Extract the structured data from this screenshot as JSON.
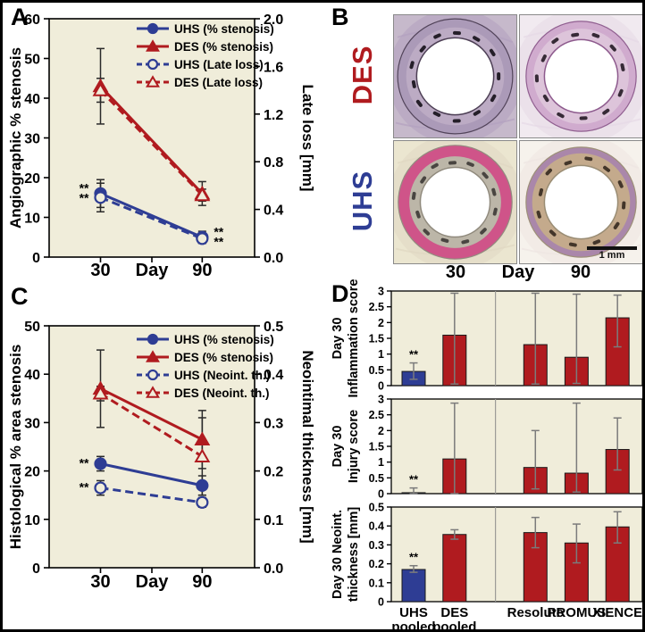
{
  "panels": {
    "a": {
      "label": "A"
    },
    "b": {
      "label": "B"
    },
    "c": {
      "label": "C"
    },
    "d": {
      "label": "D"
    }
  },
  "colors": {
    "uhs": "#2e3d94",
    "des": "#b01b1f",
    "plot_bg": "#f0edda",
    "err_dark": "#2a2a2a",
    "err_gray": "#7b7b7b",
    "axis": "#000000"
  },
  "chart_data": [
    {
      "id": "panel-a",
      "type": "line",
      "x": [
        "30",
        "90"
      ],
      "xlabel": "Day",
      "ylabel_left": "Angiographic % stenosis",
      "ylabel_right": "Late loss [mm]",
      "ylim_left": [
        0,
        60
      ],
      "yticks_left": [
        "0",
        "10",
        "20",
        "30",
        "40",
        "50",
        "60"
      ],
      "ylim_right": [
        0,
        2.0
      ],
      "yticks_right": [
        "0.0",
        "0.4",
        "0.8",
        "1.2",
        "1.6",
        "2.0"
      ],
      "legend_position": "top-right-inside",
      "series": [
        {
          "name": "UHS (% stenosis)",
          "axis": "left",
          "color": "uhs",
          "style": "solid",
          "marker": "circle",
          "filled": true,
          "values": [
            16,
            5
          ],
          "errors": [
            3.5,
            1.5
          ]
        },
        {
          "name": "DES (% stenosis)",
          "axis": "left",
          "color": "des",
          "style": "solid",
          "marker": "triangle",
          "filled": true,
          "values": [
            43,
            16
          ],
          "errors": [
            9.5,
            3
          ]
        },
        {
          "name": "UHS (Late loss)",
          "axis": "right",
          "color": "uhs",
          "style": "dashed",
          "marker": "circle",
          "filled": false,
          "values": [
            0.5,
            0.155
          ],
          "errors": [
            0.12,
            0.04
          ]
        },
        {
          "name": "DES (Late loss)",
          "axis": "right",
          "color": "des",
          "style": "dashed",
          "marker": "triangle",
          "filled": false,
          "values": [
            1.4,
            0.52
          ],
          "errors": [
            0.1,
            0.05
          ]
        }
      ],
      "annotations": [
        {
          "series": 0,
          "point": 0,
          "text": "**\n**",
          "side": "left"
        },
        {
          "series": 0,
          "point": 1,
          "text": "**\n**",
          "side": "right"
        }
      ]
    },
    {
      "id": "panel-c",
      "type": "line",
      "x": [
        "30",
        "90"
      ],
      "xlabel": "Day",
      "ylabel_left": "Histological % area stenosis",
      "ylabel_right": "Neointimal thickness [mm]",
      "ylim_left": [
        0,
        50
      ],
      "yticks_left": [
        "0",
        "10",
        "20",
        "30",
        "40",
        "50"
      ],
      "ylim_right": [
        0,
        0.5
      ],
      "yticks_right": [
        "0.0",
        "0.1",
        "0.2",
        "0.3",
        "0.4",
        "0.5"
      ],
      "legend_position": "top-right-inside",
      "series": [
        {
          "name": "UHS (% stenosis)",
          "axis": "left",
          "color": "uhs",
          "style": "solid",
          "marker": "circle",
          "filled": true,
          "values": [
            21.5,
            17
          ],
          "errors": [
            1.5,
            2
          ]
        },
        {
          "name": "DES (% stenosis)",
          "axis": "left",
          "color": "des",
          "style": "solid",
          "marker": "triangle",
          "filled": true,
          "values": [
            37,
            26.5
          ],
          "errors": [
            8,
            6
          ]
        },
        {
          "name": "UHS (Neoint. th.)",
          "axis": "right",
          "color": "uhs",
          "style": "dashed",
          "marker": "circle",
          "filled": false,
          "values": [
            0.165,
            0.135
          ],
          "errors": [
            0.015,
            0.01
          ]
        },
        {
          "name": "DES (Neoint. th.)",
          "axis": "right",
          "color": "des",
          "style": "dashed",
          "marker": "triangle",
          "filled": false,
          "values": [
            0.36,
            0.23
          ],
          "errors": [
            0.015,
            0.08
          ]
        }
      ],
      "annotations": [
        {
          "series": 0,
          "point": 0,
          "text": "**",
          "side": "left"
        },
        {
          "series": 2,
          "point": 0,
          "text": "**",
          "side": "left"
        }
      ]
    },
    {
      "id": "panel-d",
      "type": "bar",
      "categories": [
        [
          "UHS",
          "pooled"
        ],
        [
          "DES",
          "pooled"
        ],
        [
          "Resolute"
        ],
        [
          "PROMUS"
        ],
        [
          "XIENCE"
        ]
      ],
      "bar_colors": [
        "uhs",
        "des",
        "des",
        "des",
        "des"
      ],
      "charts": [
        {
          "ylabel_lines": [
            "Day 30",
            "Inflammation score"
          ],
          "ylim": [
            0,
            3
          ],
          "yticks": [
            "0",
            "0.5",
            "1",
            "1.5",
            "2",
            "2.5",
            "3"
          ],
          "values": [
            0.45,
            1.6,
            1.3,
            0.9,
            2.15
          ],
          "err_up": [
            0.27,
            1.33,
            1.63,
            2.0,
            0.72
          ],
          "err_down": [
            0.25,
            1.55,
            1.25,
            0.83,
            0.92
          ],
          "sig": [
            {
              "bar": 0,
              "text": "**"
            }
          ]
        },
        {
          "ylabel_lines": [
            "Day 30",
            "Injury score"
          ],
          "ylim": [
            0,
            3
          ],
          "yticks": [
            "0",
            "0.5",
            "1",
            "1.5",
            "2",
            "2.5",
            "3"
          ],
          "values": [
            0.03,
            1.1,
            0.83,
            0.65,
            1.4
          ],
          "err_up": [
            0.15,
            1.77,
            1.17,
            2.22,
            1.0
          ],
          "err_down": [
            0.03,
            1.1,
            0.68,
            0.6,
            0.65
          ],
          "sig": [
            {
              "bar": 0,
              "text": "**"
            }
          ]
        },
        {
          "ylabel_lines": [
            "Day 30 Neoint.",
            "thickness [mm]"
          ],
          "ylim": [
            0,
            0.5
          ],
          "yticks": [
            "0",
            "0.1",
            "0.2",
            "0.3",
            "0.4",
            "0.5"
          ],
          "values": [
            0.17,
            0.355,
            0.365,
            0.31,
            0.395
          ],
          "err_up": [
            0.02,
            0.025,
            0.08,
            0.1,
            0.08
          ],
          "err_down": [
            0.015,
            0.025,
            0.08,
            0.105,
            0.085
          ],
          "sig": [
            {
              "bar": 0,
              "text": "**"
            }
          ]
        }
      ]
    }
  ],
  "panel_b": {
    "row_labels": [
      {
        "text": "DES",
        "color": "des"
      },
      {
        "text": "UHS",
        "color": "uhs"
      }
    ],
    "x_labels": [
      "30",
      "Day",
      "90"
    ],
    "scale_bar": "1 mm",
    "tiles": [
      {
        "stent": "DES",
        "day": "30",
        "bg": "#c6b9cb",
        "halo": "#b3a1bf",
        "tissue": "#ab9ab8",
        "ring": "#bcabc4",
        "lumen_edge": "#4d3f55",
        "strut": "#141018",
        "tissue_r": 0.47,
        "ring_r": 0.4,
        "lumen_r": 0.315,
        "strut_r": 0.355,
        "n_struts": 13
      },
      {
        "stent": "DES",
        "day": "90",
        "bg": "#f1eaf0",
        "halo": "#e6d8e6",
        "tissue": "#cfa9cd",
        "ring": "#ddc4da",
        "lumen_edge": "#8d5a8d",
        "strut": "#241a24",
        "tissue_r": 0.45,
        "ring_r": 0.39,
        "lumen_r": 0.3,
        "strut_r": 0.35,
        "n_struts": 12
      },
      {
        "stent": "UHS",
        "day": "30",
        "bg": "#ebe6d0",
        "halo": "#e0d7c2",
        "tissue": "#cf4f87",
        "ring": "#bcb6a8",
        "lumen_edge": "#8f897c",
        "strut": "#3c3835",
        "tissue_r": 0.465,
        "ring_r": 0.375,
        "lumen_r": 0.285,
        "strut_r": 0.33,
        "n_struts": 13
      },
      {
        "stent": "UHS",
        "day": "90",
        "bg": "#f6f2ec",
        "halo": "#eee6e2",
        "tissue": "#a883a8",
        "ring": "#c4aa8c",
        "lumen_edge": "#9a8d74",
        "strut": "#35291f",
        "tissue_r": 0.45,
        "ring_r": 0.4,
        "lumen_r": 0.3,
        "n_struts": 12,
        "strut_r": 0.35
      }
    ]
  }
}
